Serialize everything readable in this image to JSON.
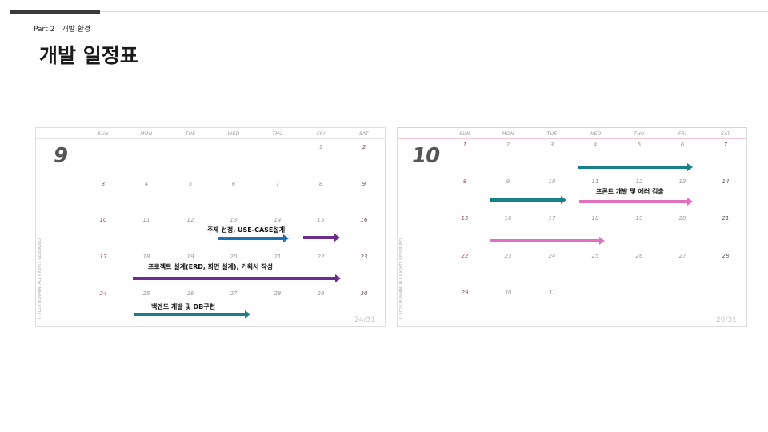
{
  "header": {
    "part": "Part 2",
    "section": "개발 환경",
    "title": "개발 일정표"
  },
  "weekdays": [
    "SUN",
    "MON",
    "TUE",
    "WED",
    "THU",
    "FRI",
    "SAT"
  ],
  "calendars": [
    {
      "month": "9",
      "page": "24/31",
      "copyright": "© 2023 BUNMIN. ALL RIGHTS RESERVED",
      "weeks": [
        [
          "",
          "",
          "",
          "",
          "",
          "1",
          "2"
        ],
        [
          "3",
          "4",
          "5",
          "6",
          "7",
          "8",
          "9"
        ],
        [
          "10",
          "11",
          "12",
          "13",
          "14",
          "15",
          "16"
        ],
        [
          "17",
          "18",
          "19",
          "20",
          "21",
          "22",
          "23"
        ],
        [
          "24",
          "25",
          "26",
          "27",
          "28",
          "29",
          "30"
        ]
      ],
      "tasks": [
        {
          "label": "주제 선정, USE-CASE설계",
          "color": "blue"
        },
        {
          "label": "",
          "color": "purple"
        },
        {
          "label": "프로젝트 설계(ERD, 화면 설계), 기획서 작성",
          "color": "purple"
        },
        {
          "label": "백엔드 개발 및 DB구현",
          "color": "teal"
        }
      ]
    },
    {
      "month": "10",
      "page": "26/31",
      "copyright": "© 2023 BUNMIN. ALL RIGHTS RESERVED",
      "weeks": [
        [
          "1",
          "2",
          "3",
          "4",
          "5",
          "6",
          "7"
        ],
        [
          "8",
          "9",
          "10",
          "11",
          "12",
          "13",
          "14"
        ],
        [
          "15",
          "16",
          "17",
          "18",
          "19",
          "20",
          "21"
        ],
        [
          "22",
          "23",
          "24",
          "25",
          "26",
          "27",
          "28"
        ],
        [
          "29",
          "30",
          "31",
          "",
          "",
          "",
          ""
        ]
      ],
      "tasks": [
        {
          "label": "",
          "color": "teal"
        },
        {
          "label": "",
          "color": "teal"
        },
        {
          "label": "프론트 개발 및 에러 검출",
          "color": "pink"
        },
        {
          "label": "",
          "color": "pink"
        }
      ]
    }
  ]
}
